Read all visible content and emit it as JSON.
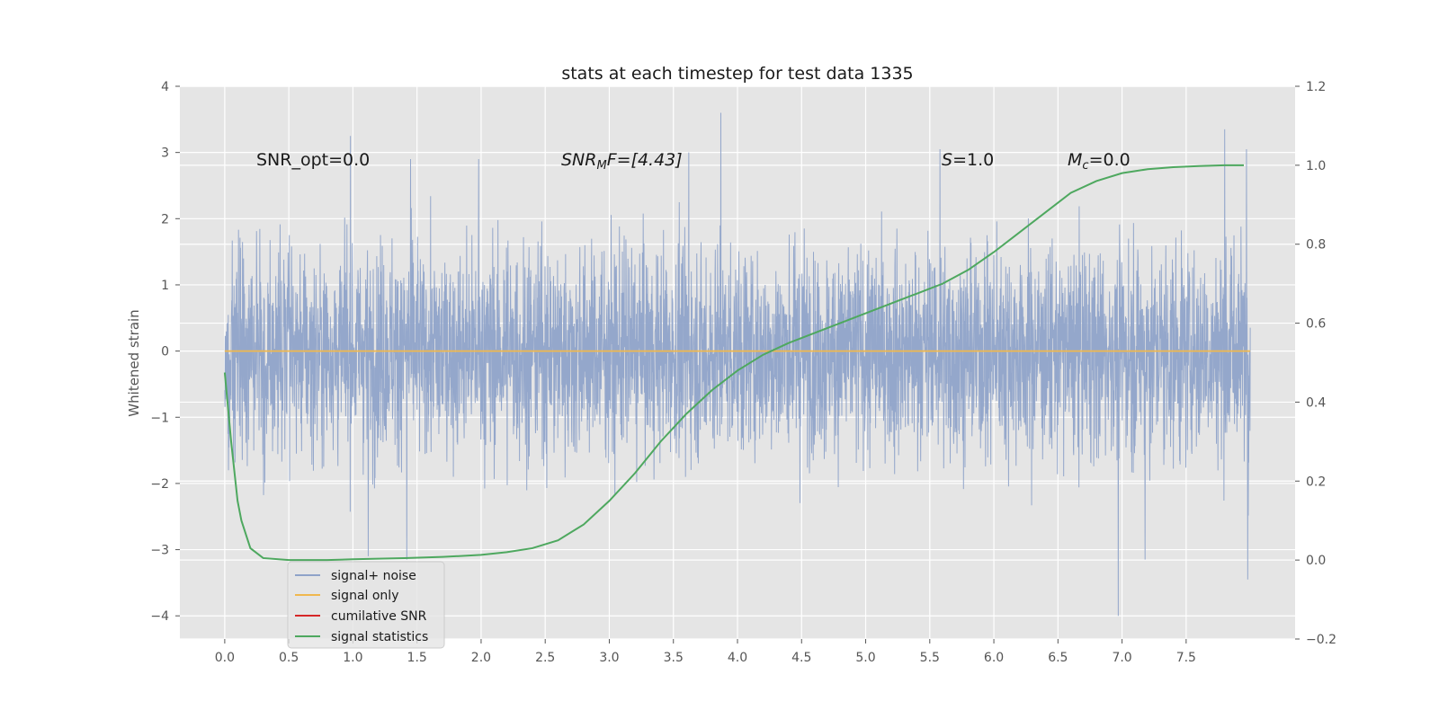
{
  "chart_data": {
    "type": "line",
    "title": "stats at each timestep for test data 1335",
    "ylabel": "Whitened strain",
    "xlabel": "",
    "xlim": [
      -0.35,
      8.35
    ],
    "ylim": [
      -4.35,
      4.0
    ],
    "y2lim": [
      -0.2,
      1.2
    ],
    "x_ticks": [
      "0.0",
      "0.5",
      "1.0",
      "1.5",
      "2.0",
      "2.5",
      "3.0",
      "3.5",
      "4.0",
      "4.5",
      "5.0",
      "5.5",
      "6.0",
      "6.5",
      "7.0",
      "7.5"
    ],
    "y_ticks": [
      "4",
      "3",
      "2",
      "1",
      "0",
      "−1",
      "−2",
      "−3",
      "−4"
    ],
    "y2_ticks": [
      "1.2",
      "1.0",
      "0.8",
      "0.6",
      "0.4",
      "0.2",
      "0.0",
      "−0.2"
    ],
    "grid": true,
    "legend_position": "lower-left",
    "annotations": {
      "snr_opt": "SNR_opt=0.0",
      "snr_mf_main": "SNR",
      "snr_mf_sub": "M",
      "snr_mf_rest": "F=[4.43]",
      "s_var": "S",
      "s_rest": "=1.0",
      "mc_var": "M",
      "mc_sub": "c",
      "mc_rest": "=0.0"
    },
    "series": [
      {
        "name": "signal+ noise",
        "axis": "left",
        "color": "#8fa3c9",
        "x_start": 0.0,
        "x_end": 8.0,
        "n_points": 4096,
        "note_values": "noisy whitened strain with unit standard deviation, approx range -4 to 3.6",
        "peaks": [
          {
            "x": 0.98,
            "y": 3.25
          },
          {
            "x": 1.45,
            "y": 2.9
          },
          {
            "x": 1.98,
            "y": 2.9
          },
          {
            "x": 3.62,
            "y": 3.0
          },
          {
            "x": 3.87,
            "y": 3.6
          },
          {
            "x": 5.58,
            "y": 3.05
          },
          {
            "x": 7.8,
            "y": 3.35
          },
          {
            "x": 7.97,
            "y": 3.05
          },
          {
            "x": 0.03,
            "y": -1.8
          },
          {
            "x": 1.12,
            "y": -3.1
          },
          {
            "x": 1.42,
            "y": -3.15
          },
          {
            "x": 6.97,
            "y": -4.0
          },
          {
            "x": 7.18,
            "y": -3.15
          },
          {
            "x": 7.98,
            "y": -3.45
          }
        ]
      },
      {
        "name": "signal only",
        "axis": "left",
        "color": "#f0b84e",
        "x": [
          0.0,
          8.0
        ],
        "y": [
          0.0,
          0.0
        ]
      },
      {
        "name": "cumilative SNR",
        "axis": "left",
        "color": "#d62728",
        "x": [],
        "y": []
      },
      {
        "name": "signal statistics",
        "axis": "right",
        "color": "#4ea85f",
        "x": [
          0.0,
          0.05,
          0.1,
          0.13,
          0.2,
          0.3,
          0.5,
          0.8,
          1.0,
          1.4,
          1.7,
          2.0,
          2.2,
          2.4,
          2.6,
          2.8,
          3.0,
          3.2,
          3.4,
          3.6,
          3.8,
          4.0,
          4.2,
          4.4,
          4.6,
          4.8,
          5.0,
          5.2,
          5.4,
          5.6,
          5.8,
          6.0,
          6.2,
          6.4,
          6.6,
          6.8,
          7.0,
          7.2,
          7.4,
          7.6,
          7.8,
          7.95
        ],
        "y": [
          0.475,
          0.3,
          0.15,
          0.1,
          0.03,
          0.005,
          0.0,
          0.0,
          0.002,
          0.005,
          0.008,
          0.013,
          0.02,
          0.03,
          0.05,
          0.09,
          0.15,
          0.22,
          0.3,
          0.37,
          0.43,
          0.48,
          0.52,
          0.55,
          0.575,
          0.6,
          0.625,
          0.65,
          0.675,
          0.7,
          0.735,
          0.78,
          0.83,
          0.88,
          0.93,
          0.96,
          0.98,
          0.99,
          0.995,
          0.998,
          1.0,
          1.0
        ]
      }
    ]
  }
}
